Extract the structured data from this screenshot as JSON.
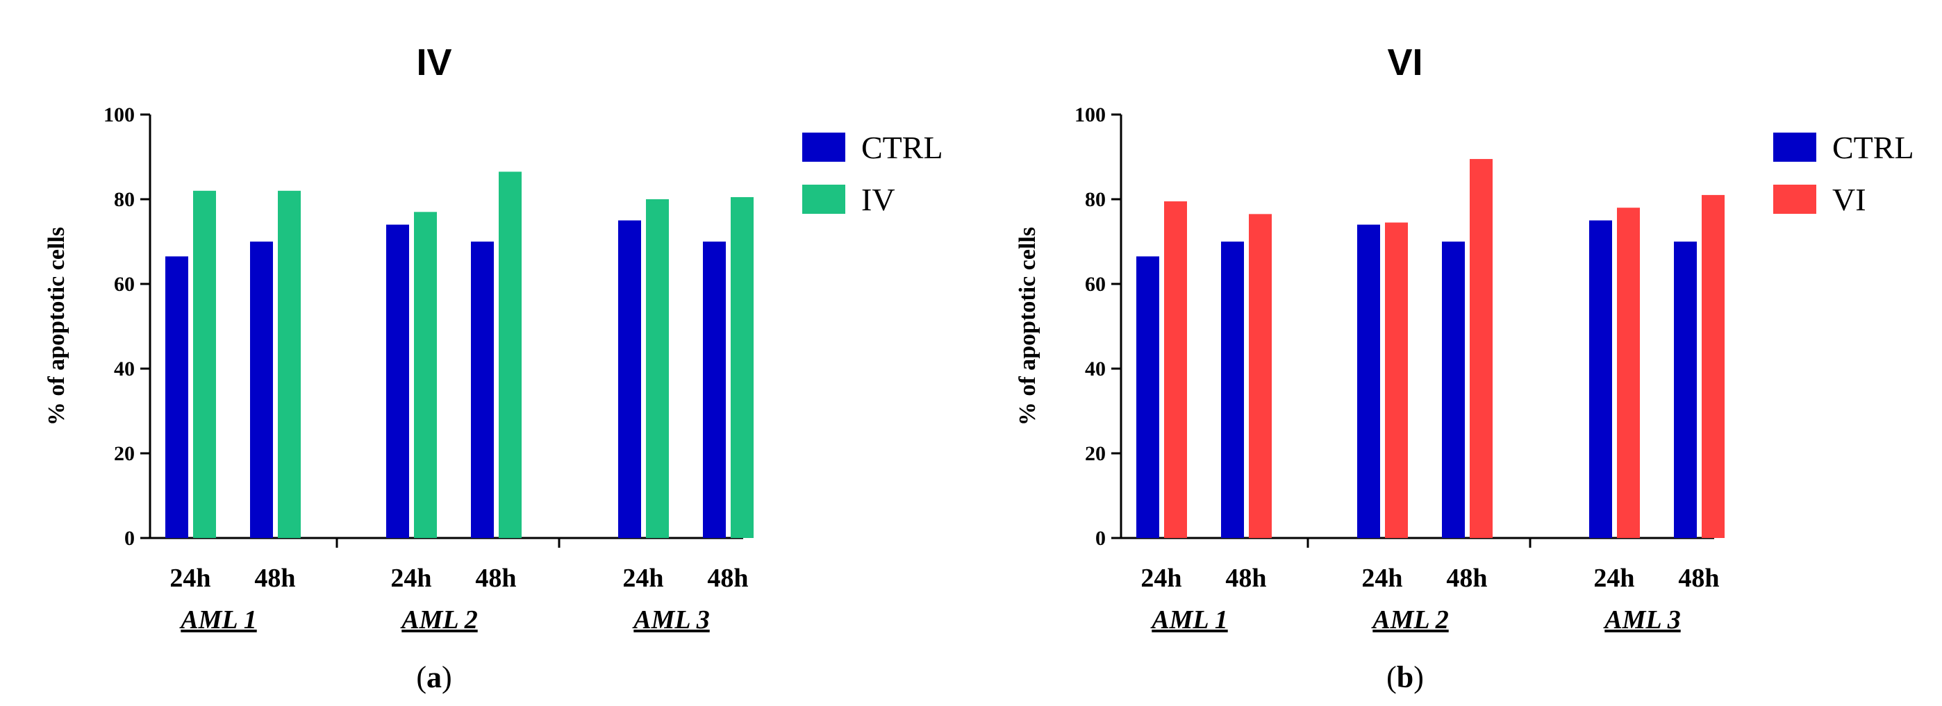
{
  "colors": {
    "ctrl": "#0000C8",
    "iv": "#1DC281",
    "vi": "#FF4040"
  },
  "chart_data": [
    {
      "type": "bar",
      "title": "IV",
      "ylabel": "% of apoptotic cells",
      "xlabel": "",
      "ylim": [
        0,
        100
      ],
      "yticks": [
        "0",
        "20",
        "40",
        "60",
        "80",
        "100"
      ],
      "timepoints": [
        "24h",
        "48h"
      ],
      "groups": [
        "AML 1",
        "AML 2",
        "AML 3"
      ],
      "categories": [
        "AML 1 24h",
        "AML 1 48h",
        "AML 2 24h",
        "AML 2 48h",
        "AML 3 24h",
        "AML 3 48h"
      ],
      "series": [
        {
          "name": "CTRL",
          "color": "#0000C8",
          "values": [
            66.5,
            70,
            74,
            70,
            75,
            70
          ]
        },
        {
          "name": "IV",
          "color": "#1DC281",
          "values": [
            82,
            82,
            77,
            86.5,
            80,
            80.5
          ]
        }
      ],
      "legend": [
        "CTRL",
        "IV"
      ],
      "legend_position": "top-right",
      "caption_prefix": "(",
      "caption": "a",
      "caption_suffix": ")"
    },
    {
      "type": "bar",
      "title": "VI",
      "ylabel": "% of apoptotic cells",
      "xlabel": "",
      "ylim": [
        0,
        100
      ],
      "yticks": [
        "0",
        "20",
        "40",
        "60",
        "80",
        "100"
      ],
      "timepoints": [
        "24h",
        "48h"
      ],
      "groups": [
        "AML 1",
        "AML 2",
        "AML 3"
      ],
      "categories": [
        "AML 1 24h",
        "AML 1 48h",
        "AML 2 24h",
        "AML 2 48h",
        "AML 3 24h",
        "AML 3 48h"
      ],
      "series": [
        {
          "name": "CTRL",
          "color": "#0000C8",
          "values": [
            66.5,
            70,
            74,
            70,
            75,
            70
          ]
        },
        {
          "name": "VI",
          "color": "#FF4040",
          "values": [
            79.5,
            76.5,
            74.5,
            89.5,
            78,
            81
          ]
        }
      ],
      "legend": [
        "CTRL",
        "VI"
      ],
      "legend_position": "top-right",
      "caption_prefix": "(",
      "caption": "b",
      "caption_suffix": ")"
    }
  ]
}
